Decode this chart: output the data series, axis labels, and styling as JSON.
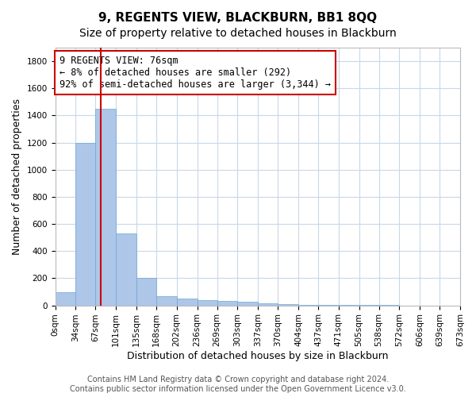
{
  "title": "9, REGENTS VIEW, BLACKBURN, BB1 8QQ",
  "subtitle": "Size of property relative to detached houses in Blackburn",
  "xlabel": "Distribution of detached houses by size in Blackburn",
  "ylabel": "Number of detached properties",
  "bin_edges": [
    0,
    34,
    67,
    101,
    135,
    168,
    202,
    236,
    269,
    303,
    337,
    370,
    404,
    437,
    471,
    505,
    538,
    572,
    606,
    639,
    673
  ],
  "bar_heights": [
    100,
    1200,
    1450,
    530,
    200,
    70,
    50,
    40,
    35,
    25,
    15,
    10,
    5,
    3,
    2,
    1,
    1,
    0,
    0,
    0
  ],
  "bar_color": "#aec6e8",
  "bar_edge_color": "#6aaad4",
  "ylim": [
    0,
    1900
  ],
  "yticks": [
    0,
    200,
    400,
    600,
    800,
    1000,
    1200,
    1400,
    1600,
    1800
  ],
  "property_size": 76,
  "vline_color": "#cc0000",
  "annotation_text": "9 REGENTS VIEW: 76sqm\n← 8% of detached houses are smaller (292)\n92% of semi-detached houses are larger (3,344) →",
  "annotation_box_color": "#ffffff",
  "annotation_border_color": "#cc0000",
  "footer_text": "Contains HM Land Registry data © Crown copyright and database right 2024.\nContains public sector information licensed under the Open Government Licence v3.0.",
  "background_color": "#ffffff",
  "grid_color": "#c8d8e8",
  "title_fontsize": 11,
  "subtitle_fontsize": 10,
  "label_fontsize": 9,
  "tick_fontsize": 7.5,
  "annotation_fontsize": 8.5,
  "footer_fontsize": 7
}
